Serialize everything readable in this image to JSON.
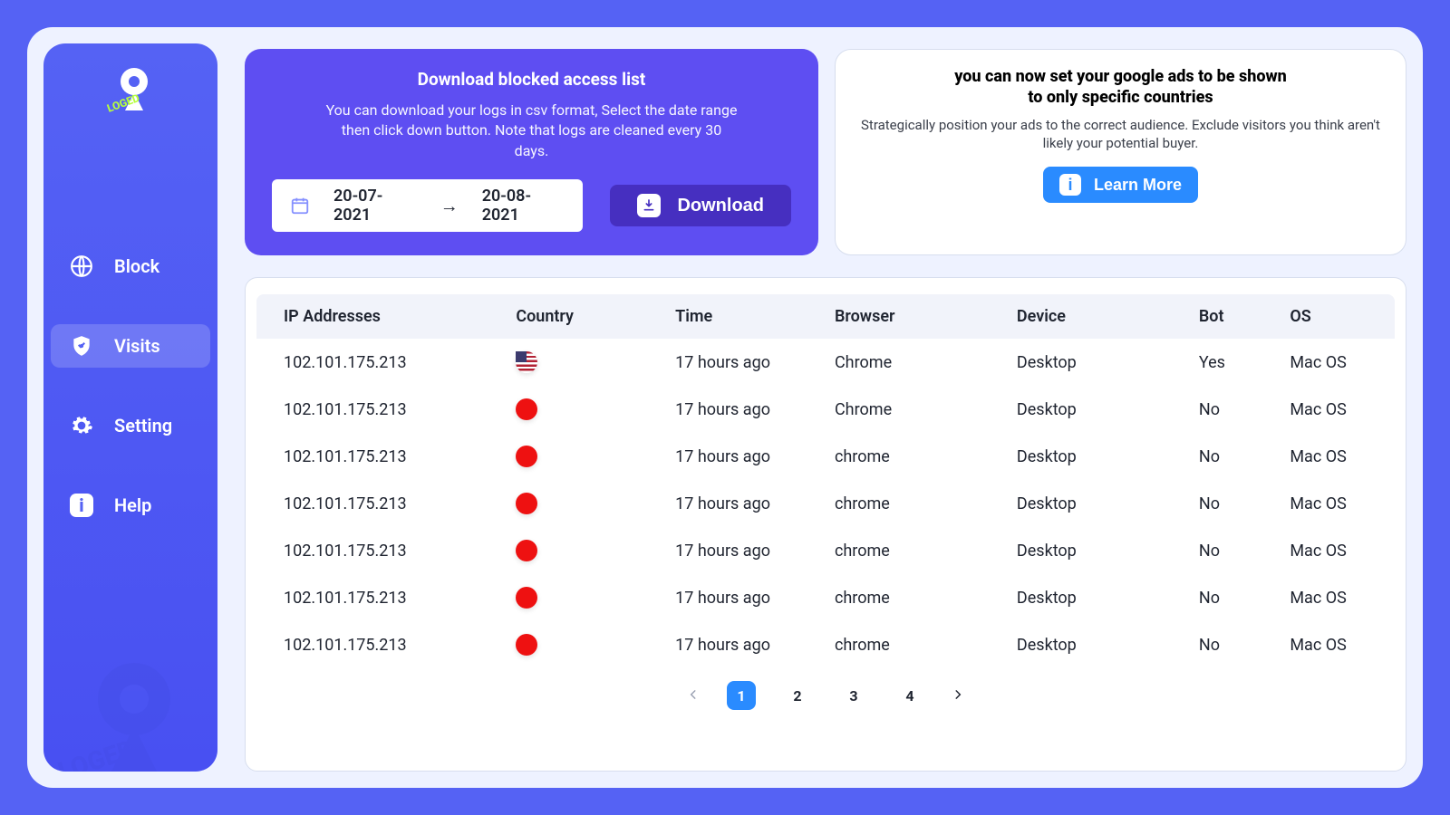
{
  "colors": {
    "outer": "#5562f4",
    "surface": "#eef2ff",
    "sidebar": "#5562f4",
    "dlcard": "#5e4ef2",
    "dlbtn": "#462fc0",
    "primary_blue": "#2a8bff",
    "border": "#d7deee",
    "header_row": "#f1f3fa",
    "text": "#1f2430"
  },
  "sidebar": {
    "brand": "IP LOGED",
    "items": [
      {
        "label": "Block",
        "icon": "globe",
        "active": false
      },
      {
        "label": "Visits",
        "icon": "shield",
        "active": true
      },
      {
        "label": "Setting",
        "icon": "gear",
        "active": false
      },
      {
        "label": "Help",
        "icon": "info",
        "active": false
      }
    ]
  },
  "download_card": {
    "title": "Download blocked access list",
    "subtitle": "You can download your logs in csv format, Select the date range then click down button. Note that logs are cleaned every 30 days.",
    "date_from": "20-07-2021",
    "date_to": "20-08-2021",
    "button": "Download"
  },
  "ad_card": {
    "title_line1": "you can now set your google ads to be shown",
    "title_line2": "to only specific countries",
    "body": "Strategically position your ads to the correct audience. Exclude visitors you think aren't likely your potential buyer.",
    "button": "Learn More"
  },
  "table": {
    "columns": [
      "IP Addresses",
      "Country",
      "Time",
      "Browser",
      "Device",
      "Bot",
      "OS"
    ],
    "rows": [
      {
        "ip": "102.101.175.213",
        "country": "us",
        "time": "17 hours ago",
        "browser": "Chrome",
        "device": "Desktop",
        "bot": "Yes",
        "os": "Mac OS"
      },
      {
        "ip": "102.101.175.213",
        "country": "red",
        "time": "17 hours ago",
        "browser": "Chrome",
        "device": "Desktop",
        "bot": "No",
        "os": "Mac OS"
      },
      {
        "ip": "102.101.175.213",
        "country": "red",
        "time": "17 hours ago",
        "browser": "chrome",
        "device": "Desktop",
        "bot": "No",
        "os": "Mac OS"
      },
      {
        "ip": "102.101.175.213",
        "country": "red",
        "time": "17 hours ago",
        "browser": "chrome",
        "device": "Desktop",
        "bot": "No",
        "os": "Mac OS"
      },
      {
        "ip": "102.101.175.213",
        "country": "red",
        "time": "17 hours ago",
        "browser": "chrome",
        "device": "Desktop",
        "bot": "No",
        "os": "Mac OS"
      },
      {
        "ip": "102.101.175.213",
        "country": "red",
        "time": "17 hours ago",
        "browser": "chrome",
        "device": "Desktop",
        "bot": "No",
        "os": "Mac OS"
      },
      {
        "ip": "102.101.175.213",
        "country": "red",
        "time": "17 hours ago",
        "browser": "chrome",
        "device": "Desktop",
        "bot": "No",
        "os": "Mac OS"
      }
    ]
  },
  "pagination": {
    "pages": [
      "1",
      "2",
      "3",
      "4"
    ],
    "current": "1"
  }
}
